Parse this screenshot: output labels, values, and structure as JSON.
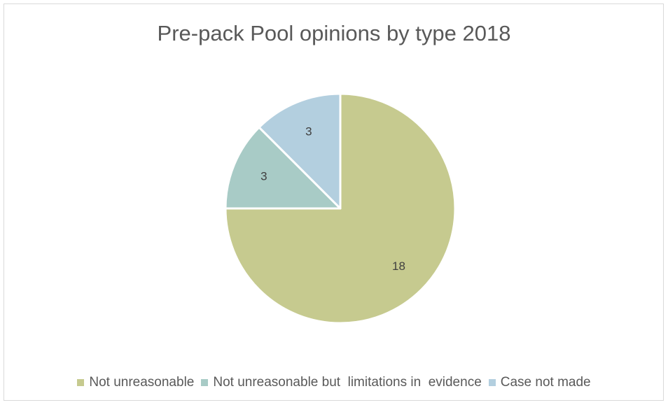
{
  "chart_data": {
    "type": "pie",
    "title": "Pre-pack Pool opinions by type 2018",
    "slices": [
      {
        "label": "Not unreasonable",
        "value": 18,
        "color": "#c6ca8f"
      },
      {
        "label": "Not unreasonable but  limitations in  evidence",
        "value": 3,
        "color": "#a8cbc6"
      },
      {
        "label": "Case not made",
        "value": 3,
        "color": "#b3cfdf"
      }
    ],
    "legend_position": "bottom",
    "data_labels": true
  }
}
